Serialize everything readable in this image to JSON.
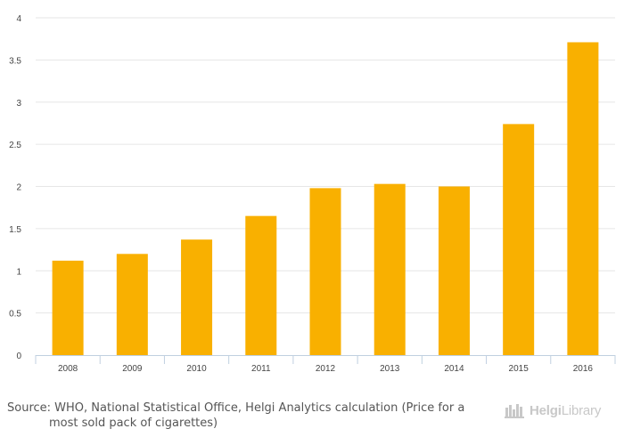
{
  "chart_data": {
    "type": "bar",
    "categories": [
      "2008",
      "2009",
      "2010",
      "2011",
      "2012",
      "2013",
      "2014",
      "2015",
      "2016"
    ],
    "values": [
      1.12,
      1.2,
      1.37,
      1.65,
      1.98,
      2.03,
      2.0,
      2.74,
      3.71
    ],
    "ylim": [
      0,
      4
    ],
    "yticks": [
      "0",
      "0.5",
      "1",
      "1.5",
      "2",
      "2.5",
      "3",
      "3.5",
      "4"
    ],
    "bar_color": "#f9b000",
    "grid": true,
    "title": "",
    "xlabel": "",
    "ylabel": ""
  },
  "footer": {
    "source_line1": "Source: WHO, National Statistical Office, Helgi Analytics calculation (Price for a",
    "source_line2": "most sold pack of cigarettes)",
    "logo_part1": "Helgi",
    "logo_part2": "Library"
  }
}
